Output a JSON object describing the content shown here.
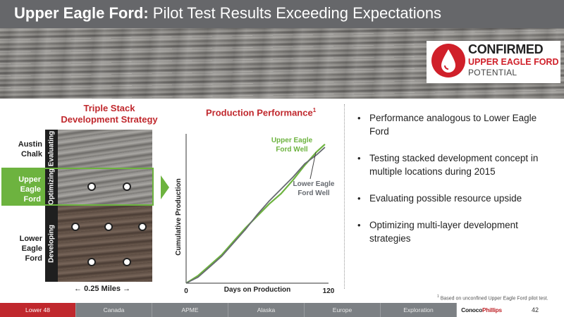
{
  "slide": {
    "title_bold": "Upper Eagle Ford:",
    "title_rest": " Pilot Test Results Exceeding Expectations",
    "page_number": "42"
  },
  "badge": {
    "line1": "CONFIRMED",
    "line2": "UPPER EAGLE FORD",
    "line3": "POTENTIAL",
    "color": "#d0202a"
  },
  "stack": {
    "heading_line1": "Triple Stack",
    "heading_line2": "Development Strategy",
    "layers": [
      {
        "name": "Austin Chalk",
        "status": "Evaluating"
      },
      {
        "name": "Upper Eagle Ford",
        "status": "Optimizing"
      },
      {
        "name": "Lower Eagle Ford",
        "status": "Developing"
      }
    ],
    "scale_label": "0.25 Miles",
    "accent": "#6db33f"
  },
  "chart_data": {
    "type": "line",
    "title": "Production Performance",
    "title_footnote_mark": "1",
    "xlabel": "Days on Production",
    "ylabel": "Cumulative Production",
    "x_tick_labels": [
      "0",
      "120"
    ],
    "xlim": [
      0,
      120
    ],
    "ylim": [
      0,
      1
    ],
    "y_scale": "unlabeled",
    "series": [
      {
        "name": "Upper Eagle Ford Well",
        "color": "#6db33f",
        "x": [
          0,
          10,
          20,
          30,
          40,
          50,
          60,
          70,
          80,
          90,
          100,
          110,
          117
        ],
        "y": [
          0.0,
          0.05,
          0.12,
          0.19,
          0.28,
          0.37,
          0.45,
          0.53,
          0.6,
          0.69,
          0.79,
          0.88,
          0.93
        ]
      },
      {
        "name": "Lower Eagle Ford Well",
        "color": "#666a70",
        "x": [
          0,
          10,
          20,
          30,
          40,
          50,
          60,
          70,
          80,
          90,
          100,
          110,
          117
        ],
        "y": [
          0.0,
          0.04,
          0.11,
          0.18,
          0.27,
          0.36,
          0.46,
          0.55,
          0.63,
          0.71,
          0.8,
          0.86,
          0.91
        ]
      }
    ],
    "legend": {
      "upper_line1": "Upper Eagle",
      "upper_line2": "Ford  Well",
      "lower_line1": "Lower Eagle",
      "lower_line2": "Ford Well"
    }
  },
  "bullets": [
    "Performance analogous to Lower Eagle Ford",
    "Testing stacked development concept in multiple locations during 2015",
    "Evaluating possible resource upside",
    "Optimizing multi-layer development strategies"
  ],
  "footnote": {
    "mark": "1",
    "text": " Based on unconfined Upper Eagle Ford pilot test."
  },
  "footer": {
    "tabs": [
      "Lower 48",
      "Canada",
      "APME",
      "Alaska",
      "Europe",
      "Exploration"
    ],
    "active_tab": "Lower 48",
    "logo_part1": "Conoco",
    "logo_part2": "Phillips"
  }
}
